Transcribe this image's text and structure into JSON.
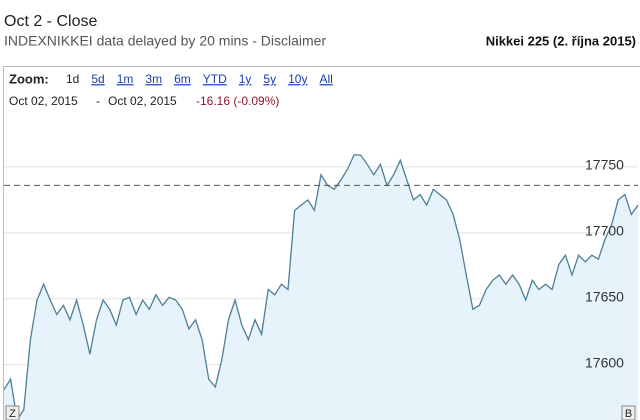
{
  "header": {
    "title": "Oct 2 - Close",
    "source": "INDEXNIKKEI data delayed by 20 mins - Disclaimer",
    "caption": "Nikkei 225 (2. října 2015)"
  },
  "toolbar": {
    "zoom_label": "Zoom:",
    "zoom_options": [
      "1d",
      "5d",
      "1m",
      "3m",
      "6m",
      "YTD",
      "1y",
      "5y",
      "10y",
      "All"
    ],
    "date_from": "Oct 02, 2015",
    "date_separator": "-",
    "date_to": "Oct 02, 2015",
    "change": "-16.16 (-0.09%)",
    "left_marker": "Z",
    "right_marker": "B"
  },
  "chart_data": {
    "type": "area",
    "color": "#4d7f96",
    "fill": "#e6f3fa",
    "values": [
      17581,
      17589,
      17558,
      17566,
      17619,
      17649,
      17661,
      17649,
      17638,
      17645,
      17634,
      17649,
      17630,
      17608,
      17634,
      17649,
      17642,
      17630,
      17649,
      17651,
      17638,
      17649,
      17642,
      17653,
      17645,
      17651,
      17649,
      17642,
      17627,
      17634,
      17619,
      17589,
      17583,
      17604,
      17634,
      17649,
      17630,
      17619,
      17634,
      17623,
      17657,
      17653,
      17661,
      17657,
      17717,
      17721,
      17725,
      17717,
      17744,
      17736,
      17733,
      17740,
      17748,
      17759,
      17759,
      17752,
      17744,
      17752,
      17736,
      17744,
      17755,
      17740,
      17725,
      17729,
      17721,
      17733,
      17729,
      17725,
      17714,
      17695,
      17668,
      17642,
      17645,
      17657,
      17664,
      17668,
      17661,
      17668,
      17661,
      17649,
      17664,
      17657,
      17661,
      17657,
      17676,
      17683,
      17668,
      17683,
      17678,
      17683,
      17680,
      17695,
      17706,
      17725,
      17729,
      17714,
      17721
    ],
    "ylim": [
      17558,
      17778
    ],
    "yticks": [
      17600,
      17650,
      17700,
      17750
    ],
    "grid": true,
    "reference_line": 17736
  }
}
